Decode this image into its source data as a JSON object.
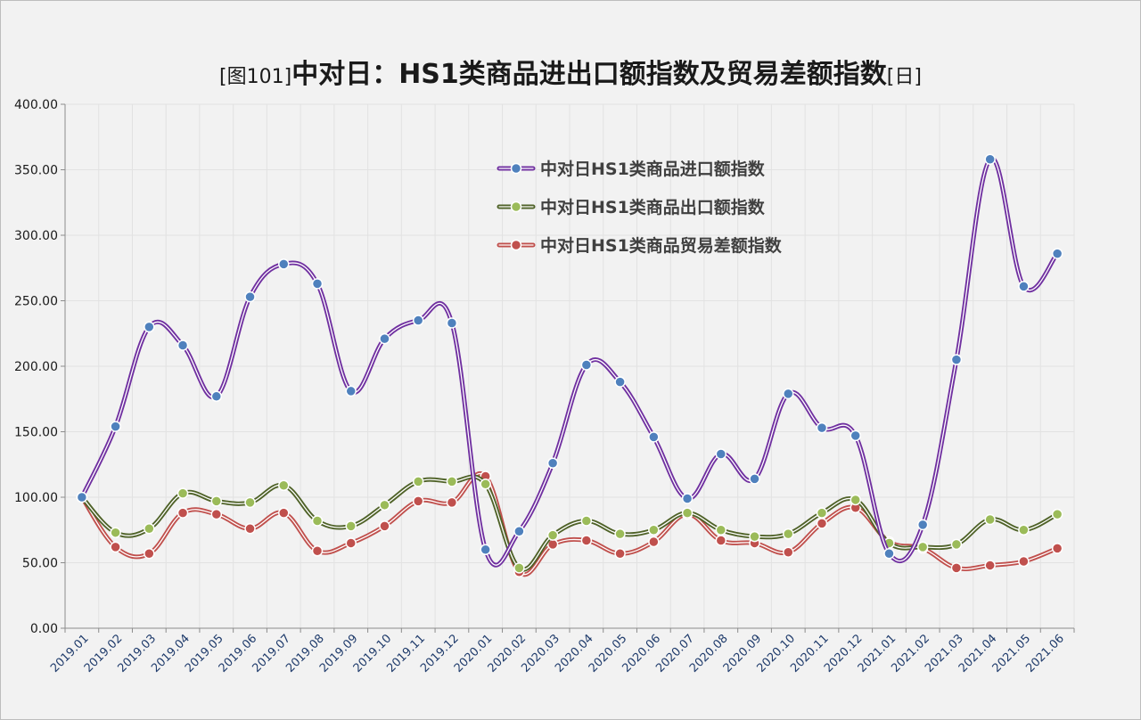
{
  "title": {
    "prefix": "[图101]",
    "main": "中对日：HS1类商品进出口额指数及贸易差额指数",
    "suffix": "[日]"
  },
  "chart_data": {
    "type": "line",
    "categories": [
      "2019.01",
      "2019.02",
      "2019.03",
      "2019.04",
      "2019.05",
      "2019.06",
      "2019.07",
      "2019.08",
      "2019.09",
      "2019.10",
      "2019.11",
      "2019.12",
      "2020.01",
      "2020.02",
      "2020.03",
      "2020.04",
      "2020.05",
      "2020.06",
      "2020.07",
      "2020.08",
      "2020.09",
      "2020.10",
      "2020.11",
      "2020.12",
      "2021.01",
      "2021.02",
      "2021.03",
      "2021.04",
      "2021.05",
      "2021.06"
    ],
    "ylim": [
      0,
      400
    ],
    "yticks": [
      "0.00",
      "50.00",
      "100.00",
      "150.00",
      "200.00",
      "250.00",
      "300.00",
      "350.00",
      "400.00"
    ],
    "grid": true,
    "legend_position": "top-center",
    "series": [
      {
        "name": "中对日HS1类商品进口额指数",
        "line_color": "#7030a0",
        "marker_color": "#4f81bd",
        "values": [
          100,
          154,
          230,
          216,
          177,
          253,
          278,
          263,
          181,
          221,
          235,
          233,
          60,
          74,
          126,
          201,
          188,
          146,
          99,
          133,
          114,
          179,
          153,
          147,
          57,
          79,
          205,
          358,
          261,
          286
        ]
      },
      {
        "name": "中对日HS1类商品出口额指数",
        "line_color": "#4f6228",
        "marker_color": "#9bbb59",
        "values": [
          100,
          73,
          76,
          103,
          97,
          96,
          109,
          82,
          78,
          94,
          112,
          112,
          110,
          46,
          71,
          82,
          72,
          75,
          88,
          75,
          70,
          72,
          88,
          98,
          65,
          62,
          64,
          83,
          75,
          87
        ]
      },
      {
        "name": "中对日HS1类商品贸易差额指数",
        "line_color": "#c0504d",
        "marker_color": "#c0504d",
        "values": [
          100,
          62,
          57,
          88,
          87,
          76,
          88,
          59,
          65,
          78,
          97,
          96,
          116,
          43,
          64,
          67,
          57,
          66,
          87,
          67,
          65,
          58,
          80,
          92,
          66,
          61,
          46,
          48,
          51,
          61
        ]
      }
    ]
  }
}
